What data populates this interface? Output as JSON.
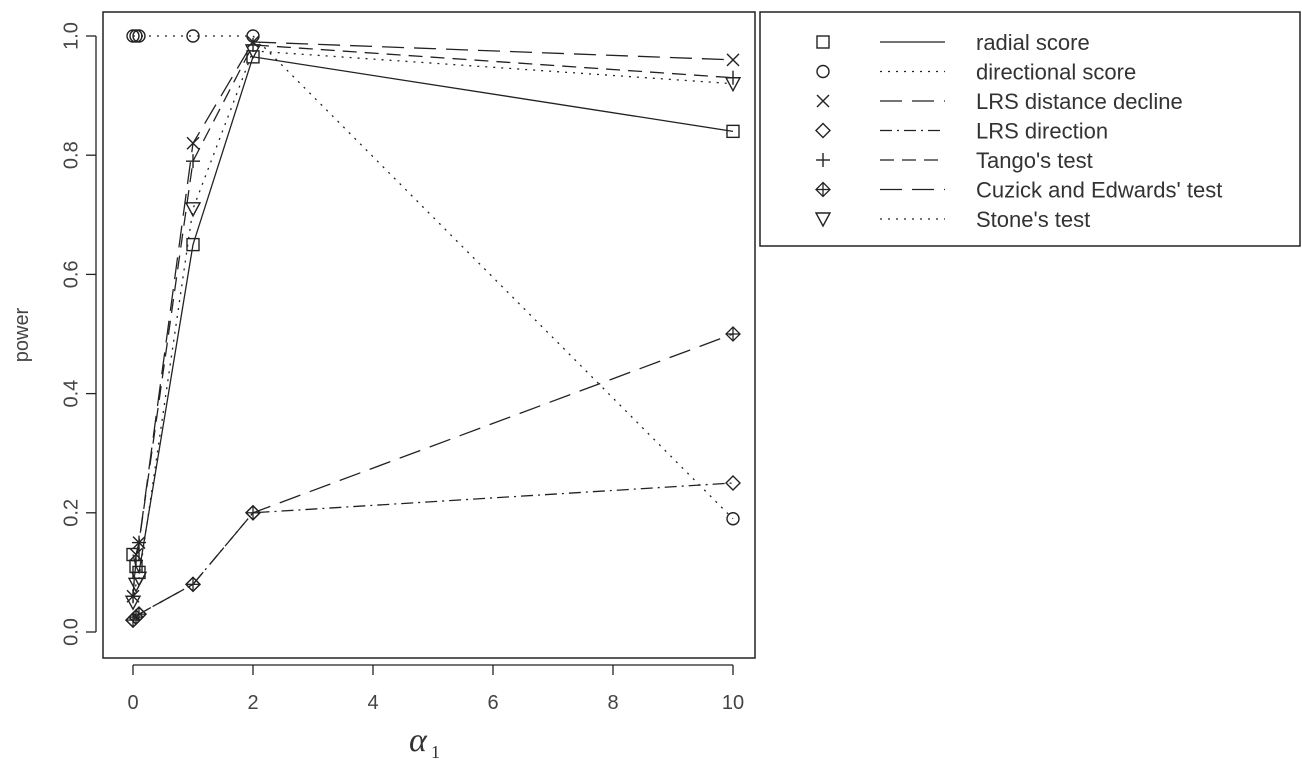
{
  "chart_data": {
    "type": "line",
    "xlabel": "α",
    "xlabel_subscript": "1",
    "ylabel": "power",
    "xlim": [
      0,
      10
    ],
    "ylim": [
      0,
      1
    ],
    "x_ticks": [
      0,
      2,
      4,
      6,
      8,
      10
    ],
    "y_ticks": [
      0.0,
      0.2,
      0.4,
      0.6,
      0.8,
      1.0
    ],
    "x_tick_labels": [
      "0",
      "2",
      "4",
      "6",
      "8",
      "10"
    ],
    "y_tick_labels": [
      "0.0",
      "0.2",
      "0.4",
      "0.6",
      "0.8",
      "1.0"
    ],
    "grid": false,
    "legend_position": "top-right-outside",
    "x": [
      0,
      0.05,
      0.1,
      1,
      2,
      10
    ],
    "series": [
      {
        "name": "radial score",
        "marker": "square",
        "dash": "solid",
        "values": [
          0.13,
          0.11,
          0.1,
          0.65,
          0.965,
          0.84
        ]
      },
      {
        "name": "directional score",
        "marker": "circle",
        "dash": "dotted",
        "values": [
          1.0,
          1.0,
          1.0,
          1.0,
          1.0,
          0.19
        ]
      },
      {
        "name": "LRS distance decline",
        "marker": "cross",
        "dash": "longdash",
        "values": [
          0.06,
          0.13,
          0.15,
          0.82,
          0.99,
          0.96
        ]
      },
      {
        "name": "LRS direction",
        "marker": "diamond",
        "dash": "dotdash",
        "values": [
          0.02,
          0.025,
          0.03,
          0.08,
          0.2,
          0.25
        ]
      },
      {
        "name": "Tango's test",
        "marker": "plus",
        "dash": "dashed",
        "values": [
          0.06,
          0.12,
          0.15,
          0.79,
          0.985,
          0.93
        ]
      },
      {
        "name": "Cuzick and Edwards' test",
        "marker": "circleplus",
        "dash": "longdash",
        "values": [
          0.02,
          0.025,
          0.03,
          0.08,
          0.2,
          0.5
        ]
      },
      {
        "name": "Stone's test",
        "marker": "triangle",
        "dash": "dotted",
        "values": [
          0.05,
          0.08,
          0.09,
          0.71,
          0.975,
          0.92
        ]
      }
    ]
  }
}
